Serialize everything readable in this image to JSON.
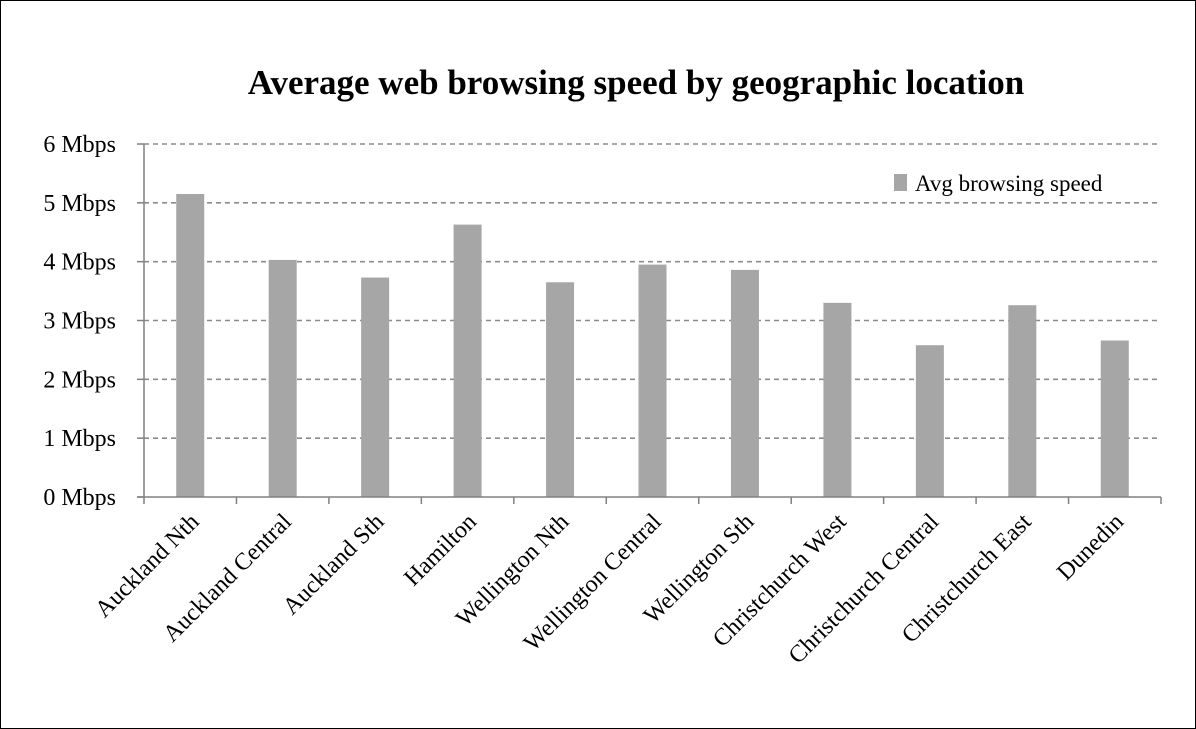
{
  "chart_data": {
    "type": "bar",
    "title": "Average web browsing speed by geographic location",
    "categories": [
      "Auckland Nth",
      "Auckland Central",
      "Auckland Sth",
      "Hamilton",
      "Wellington Nth",
      "Wellington Central",
      "Wellington Sth",
      "Christchurch West",
      "Christchurch Central",
      "Christchurch East",
      "Dunedin"
    ],
    "series": [
      {
        "name": "Avg browsing speed",
        "values": [
          5.15,
          4.03,
          3.73,
          4.63,
          3.65,
          3.95,
          3.86,
          3.3,
          2.58,
          3.26,
          2.66
        ],
        "color": "#a6a6a6"
      }
    ],
    "y_ticks": [
      "0 Mbps",
      "1 Mbps",
      "2 Mbps",
      "3 Mbps",
      "4 Mbps",
      "5 Mbps",
      "6 Mbps"
    ],
    "ylim": [
      0,
      6
    ],
    "y_unit": "Mbps",
    "grid": true,
    "grid_style": "dashed",
    "legend_position": "top-right",
    "xlabel": "",
    "ylabel": ""
  }
}
